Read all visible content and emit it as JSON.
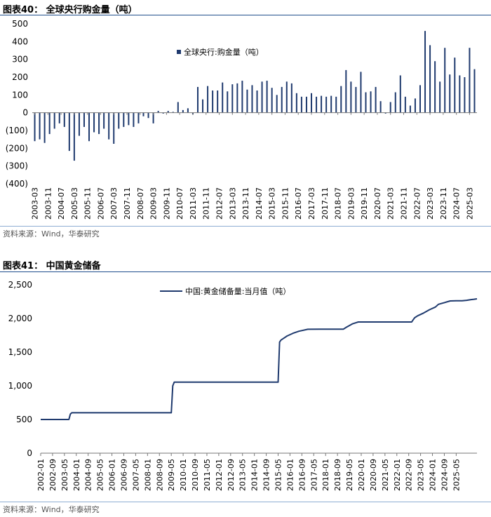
{
  "chart1": {
    "caption": "图表40：  全球央行购金量（吨）",
    "source": "资料来源：Wind，华泰研究",
    "colors": {
      "bar": "#1f3a6e",
      "rule": "#1f4e8c"
    },
    "chart_data": {
      "type": "bar",
      "title": "全球央行购金量（吨）",
      "legend": "全球央行:购金量（吨）",
      "legend_position": "top-center",
      "ylim": [
        -400,
        500
      ],
      "yticks": [
        -400,
        -300,
        -200,
        -100,
        0,
        100,
        200,
        300,
        400,
        500
      ],
      "ytick_labels": [
        "(400)",
        "(300)",
        "(200)",
        "(100)",
        "0",
        "100",
        "200",
        "300",
        "400",
        "500"
      ],
      "xtick_labels": [
        "2003-03",
        "2003-11",
        "2004-07",
        "2005-03",
        "2005-11",
        "2006-07",
        "2007-03",
        "2007-11",
        "2008-07",
        "2009-03",
        "2009-11",
        "2010-07",
        "2011-03",
        "2011-11",
        "2012-07",
        "2013-03",
        "2013-11",
        "2014-07",
        "2015-03",
        "2015-11",
        "2016-07",
        "2017-03",
        "2017-11",
        "2018-07",
        "2019-03",
        "2019-11",
        "2020-07",
        "2021-03",
        "2021-11",
        "2022-07",
        "2023-03",
        "2023-11",
        "2024-07",
        "2025-03"
      ],
      "start": "2003-03",
      "period_months": 3,
      "values": [
        -160,
        -150,
        -170,
        -120,
        -90,
        -60,
        -80,
        -215,
        -270,
        -130,
        -80,
        -160,
        -110,
        -120,
        -90,
        -150,
        -175,
        -90,
        -80,
        -70,
        -80,
        -60,
        -20,
        -30,
        -60,
        10,
        -5,
        10,
        5,
        60,
        15,
        25,
        -10,
        145,
        75,
        150,
        125,
        125,
        170,
        120,
        160,
        165,
        180,
        130,
        155,
        125,
        175,
        180,
        140,
        100,
        145,
        175,
        165,
        110,
        90,
        90,
        110,
        90,
        95,
        90,
        95,
        90,
        150,
        240,
        175,
        145,
        230,
        115,
        120,
        145,
        65,
        -5,
        60,
        115,
        210,
        90,
        40,
        80,
        155,
        460,
        380,
        290,
        175,
        365,
        215,
        310,
        210,
        200,
        365,
        245
      ]
    }
  },
  "chart2": {
    "caption": "图表41：  中国黄金储备",
    "source": "资料来源：Wind，华泰研究",
    "colors": {
      "line": "#1f3a6e",
      "rule": "#1f4e8c"
    },
    "chart_data": {
      "type": "line",
      "title": "中国黄金储备",
      "series_name": "中国:黄金储备量:当月值（吨）",
      "legend_position": "top-center",
      "ylim": [
        0,
        2500
      ],
      "yticks": [
        0,
        500,
        1000,
        1500,
        2000,
        2500
      ],
      "ytick_labels": [
        "0",
        "500",
        "1,000",
        "1,500",
        "2,000",
        "2,500"
      ],
      "xtick_labels": [
        "2002-01",
        "2002-09",
        "2003-05",
        "2004-01",
        "2004-09",
        "2005-05",
        "2006-01",
        "2006-09",
        "2007-05",
        "2008-01",
        "2008-09",
        "2009-05",
        "2010-01",
        "2010-09",
        "2011-05",
        "2012-01",
        "2012-09",
        "2013-05",
        "2014-01",
        "2014-09",
        "2015-05",
        "2016-01",
        "2016-09",
        "2017-05",
        "2018-01",
        "2018-09",
        "2019-05",
        "2020-01",
        "2020-09",
        "2021-05",
        "2022-01",
        "2022-09",
        "2023-05",
        "2024-01",
        "2024-09",
        "2025-05"
      ],
      "start": "2002-01",
      "x": [
        0,
        19,
        20,
        21,
        88,
        89,
        90,
        160,
        161,
        162,
        164,
        166,
        170,
        174,
        180,
        188,
        196,
        204,
        206,
        210,
        214,
        220,
        250,
        251,
        252,
        254,
        258,
        262,
        266,
        268,
        272,
        276,
        280,
        284,
        287,
        290,
        292,
        294
      ],
      "values": [
        500,
        500,
        580,
        600,
        600,
        1000,
        1054,
        1054,
        1650,
        1680,
        1710,
        1740,
        1780,
        1810,
        1840,
        1842,
        1842,
        1842,
        1870,
        1920,
        1948,
        1948,
        1948,
        1980,
        2010,
        2040,
        2080,
        2130,
        2170,
        2210,
        2235,
        2260,
        2262,
        2264,
        2270,
        2280,
        2285,
        2292
      ]
    }
  }
}
